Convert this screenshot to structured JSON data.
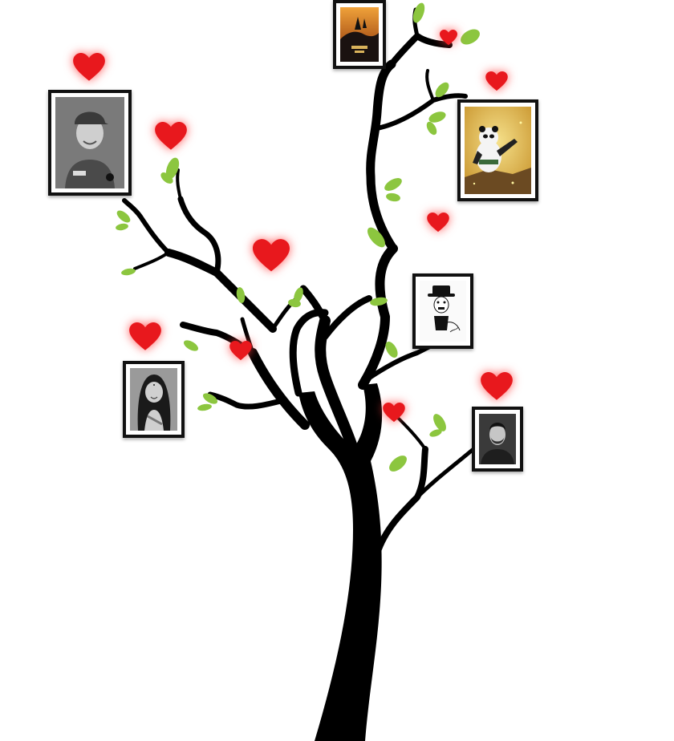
{
  "colors": {
    "branch": "#000000",
    "leaf": "#8cc63f",
    "heart": "#e8181d",
    "heart_glow": "#ff4a4a",
    "frame": "#111111",
    "background": "#ffffff"
  },
  "photos": [
    {
      "subject": "woman-in-cap"
    },
    {
      "subject": "movie-poster"
    },
    {
      "subject": "panda-cartoon"
    },
    {
      "subject": "charlie-chaplin-sketch"
    },
    {
      "subject": "young-woman-portrait"
    },
    {
      "subject": "man-portrait"
    }
  ]
}
